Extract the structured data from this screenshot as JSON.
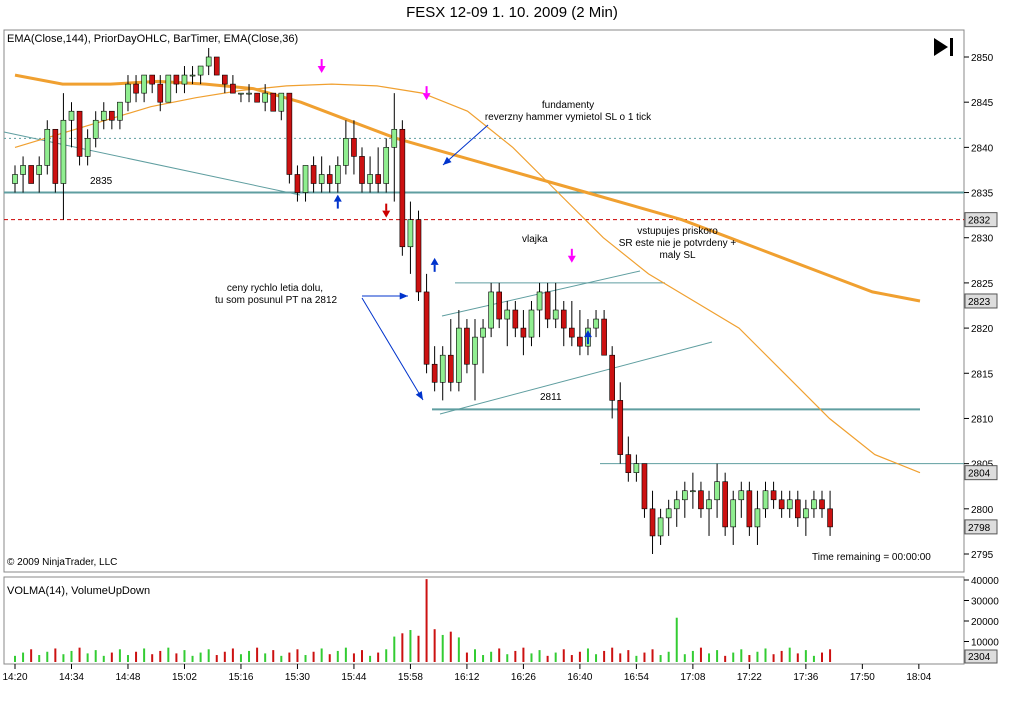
{
  "title": "FESX 12-09  1. 10. 2009 (2 Min)",
  "price_panel": {
    "indicators_label": "EMA(Close,144), PriorDayOHLC, BarTimer, EMA(Close,36)",
    "copyright": "© 2009 NinjaTrader, LLC",
    "time_remaining": "Time remaining = 00:00:00",
    "price_labels": {
      "p2832": "2832",
      "p2823": "2823",
      "p2804": "2804",
      "p2798": "2798"
    }
  },
  "volume_panel": {
    "indicators_label": "VOLMA(14), VolumeUpDown",
    "last_volume": "2304"
  },
  "annotations": {
    "fund": "fundamenty\nreverzny hammer vymietol SL o 1 tick",
    "level_2835": "2835",
    "vlajka": "vlajka",
    "vstup": "vstupujes priskoro\nSR este nie je potvrdeny +\nmaly SL",
    "ceny": "ceny rychlo letia dolu,\ntu som posunul PT na 2812",
    "level_2811": "2811"
  },
  "chart_data": {
    "type": "candlestick",
    "price_range": [
      2793,
      2852
    ],
    "y_ticks": [
      2795,
      2800,
      2805,
      2810,
      2815,
      2820,
      2825,
      2830,
      2835,
      2840,
      2845,
      2850
    ],
    "x_ticks": [
      "14:20",
      "14:34",
      "14:48",
      "15:02",
      "15:16",
      "15:30",
      "15:44",
      "15:58",
      "16:12",
      "16:26",
      "16:40",
      "16:54",
      "17:08",
      "17:22",
      "17:36",
      "17:50",
      "18:04"
    ],
    "bars_per_tick": 7,
    "volume_ticks": [
      10000,
      20000,
      30000,
      40000
    ],
    "horizontal_lines": [
      {
        "price": 2835,
        "color": "#5f9ea0",
        "style": "solid"
      },
      {
        "price": 2841,
        "color": "#5f9ea0",
        "style": "dotted"
      },
      {
        "price": 2832,
        "color": "#cc0000",
        "style": "dashed"
      },
      {
        "price": 2811,
        "color": "#5f9ea0",
        "style": "solid"
      },
      {
        "price": 2825,
        "color": "#5f9ea0",
        "style": "thin"
      },
      {
        "price": 2805,
        "color": "#5f9ea0",
        "style": "thin"
      }
    ],
    "candles": [
      [
        2836,
        2838,
        2835,
        2837
      ],
      [
        2837,
        2839,
        2835,
        2838
      ],
      [
        2838,
        2838,
        2836,
        2836
      ],
      [
        2837,
        2839,
        2835,
        2838
      ],
      [
        2838,
        2843,
        2837,
        2842
      ],
      [
        2842,
        2842,
        2835,
        2836
      ],
      [
        2836,
        2846,
        2832,
        2843
      ],
      [
        2843,
        2845,
        2840,
        2844
      ],
      [
        2844,
        2844,
        2838,
        2839
      ],
      [
        2839,
        2842,
        2838,
        2841
      ],
      [
        2841,
        2844,
        2840,
        2843
      ],
      [
        2843,
        2845,
        2842,
        2844
      ],
      [
        2844,
        2844,
        2842,
        2843
      ],
      [
        2843,
        2845,
        2842,
        2845
      ],
      [
        2845,
        2848,
        2844,
        2847
      ],
      [
        2847,
        2848,
        2845,
        2846
      ],
      [
        2846,
        2848,
        2845,
        2848
      ],
      [
        2848,
        2848,
        2846,
        2847
      ],
      [
        2847,
        2848,
        2844,
        2845
      ],
      [
        2845,
        2848,
        2845,
        2848
      ],
      [
        2848,
        2848,
        2846,
        2847
      ],
      [
        2847,
        2849,
        2846,
        2848
      ],
      [
        2848,
        2849,
        2847,
        2848
      ],
      [
        2848,
        2849,
        2847,
        2849
      ],
      [
        2849,
        2851,
        2848,
        2850
      ],
      [
        2850,
        2850,
        2848,
        2848
      ],
      [
        2848,
        2848,
        2846,
        2847
      ],
      [
        2847,
        2848,
        2846,
        2846
      ],
      [
        2846,
        2846,
        2845,
        2846
      ],
      [
        2846,
        2847,
        2845,
        2846
      ],
      [
        2846,
        2846,
        2845,
        2845
      ],
      [
        2845,
        2847,
        2844,
        2846
      ],
      [
        2846,
        2846,
        2844,
        2844
      ],
      [
        2844,
        2846,
        2843,
        2846
      ],
      [
        2846,
        2846,
        2836,
        2837
      ],
      [
        2837,
        2838,
        2834,
        2835
      ],
      [
        2835,
        2838,
        2834,
        2838
      ],
      [
        2838,
        2839,
        2835,
        2836
      ],
      [
        2836,
        2839,
        2835,
        2837
      ],
      [
        2837,
        2838,
        2835,
        2836
      ],
      [
        2836,
        2839,
        2835,
        2838
      ],
      [
        2838,
        2843,
        2837,
        2841
      ],
      [
        2841,
        2843,
        2837,
        2839
      ],
      [
        2839,
        2840,
        2835,
        2836
      ],
      [
        2836,
        2839,
        2835,
        2837
      ],
      [
        2837,
        2840,
        2835,
        2836
      ],
      [
        2836,
        2841,
        2835,
        2840
      ],
      [
        2840,
        2846,
        2834,
        2842
      ],
      [
        2842,
        2843,
        2828,
        2829
      ],
      [
        2829,
        2834,
        2826,
        2832
      ],
      [
        2832,
        2833,
        2823,
        2824
      ],
      [
        2824,
        2826,
        2815,
        2816
      ],
      [
        2816,
        2818,
        2813,
        2814
      ],
      [
        2814,
        2818,
        2812,
        2817
      ],
      [
        2817,
        2821,
        2813,
        2814
      ],
      [
        2814,
        2822,
        2813,
        2820
      ],
      [
        2820,
        2821,
        2815,
        2816
      ],
      [
        2816,
        2821,
        2812,
        2819
      ],
      [
        2819,
        2821,
        2815,
        2820
      ],
      [
        2820,
        2825,
        2819,
        2824
      ],
      [
        2824,
        2825,
        2820,
        2821
      ],
      [
        2821,
        2823,
        2818,
        2822
      ],
      [
        2822,
        2823,
        2819,
        2820
      ],
      [
        2820,
        2822,
        2817,
        2819
      ],
      [
        2819,
        2823,
        2818,
        2822
      ],
      [
        2822,
        2825,
        2819,
        2824
      ],
      [
        2824,
        2825,
        2820,
        2821
      ],
      [
        2821,
        2825,
        2820,
        2822
      ],
      [
        2822,
        2823,
        2818,
        2820
      ],
      [
        2820,
        2823,
        2818,
        2819
      ],
      [
        2819,
        2822,
        2817,
        2818
      ],
      [
        2818,
        2821,
        2817,
        2820
      ],
      [
        2820,
        2822,
        2819,
        2821
      ],
      [
        2821,
        2822,
        2817,
        2817
      ],
      [
        2817,
        2818,
        2810,
        2812
      ],
      [
        2812,
        2814,
        2805,
        2806
      ],
      [
        2806,
        2808,
        2803,
        2804
      ],
      [
        2804,
        2806,
        2803,
        2805
      ],
      [
        2805,
        2805,
        2799,
        2800
      ],
      [
        2800,
        2802,
        2795,
        2797
      ],
      [
        2797,
        2800,
        2796,
        2799
      ],
      [
        2799,
        2801,
        2797,
        2800
      ],
      [
        2800,
        2802,
        2798,
        2801
      ],
      [
        2801,
        2803,
        2799,
        2802
      ],
      [
        2802,
        2804,
        2800,
        2802
      ],
      [
        2802,
        2803,
        2799,
        2800
      ],
      [
        2800,
        2802,
        2797,
        2801
      ],
      [
        2801,
        2805,
        2799,
        2803
      ],
      [
        2803,
        2804,
        2797,
        2798
      ],
      [
        2798,
        2802,
        2796,
        2801
      ],
      [
        2801,
        2803,
        2799,
        2802
      ],
      [
        2802,
        2803,
        2797,
        2798
      ],
      [
        2798,
        2802,
        2796,
        2800
      ],
      [
        2800,
        2803,
        2799,
        2802
      ],
      [
        2802,
        2803,
        2800,
        2801
      ],
      [
        2801,
        2802,
        2799,
        2800
      ],
      [
        2800,
        2802,
        2799,
        2801
      ],
      [
        2801,
        2802,
        2798,
        2799
      ],
      [
        2799,
        2801,
        2797,
        2800
      ],
      [
        2800,
        2802,
        2799,
        2801
      ],
      [
        2801,
        2802,
        2799,
        2800
      ],
      [
        2800,
        2802,
        2797,
        2798
      ]
    ],
    "ema36": [
      2840,
      2841.5,
      2843,
      2844.5,
      2845.5,
      2846.3,
      2846.8,
      2847,
      2846.8,
      2846,
      2844,
      2840,
      2835,
      2830,
      2826,
      2823,
      2820,
      2815,
      2810,
      2806,
      2804
    ],
    "ema144": [
      2848,
      2847,
      2847,
      2847.3,
      2847,
      2846.5,
      2845,
      2843,
      2841,
      2839.5,
      2838,
      2836.5,
      2835,
      2833.5,
      2832,
      2830,
      2828,
      2826,
      2824,
      2823
    ]
  }
}
